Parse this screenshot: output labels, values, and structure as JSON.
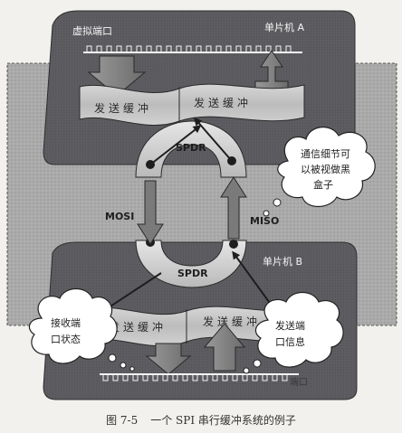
{
  "mcu_a": {
    "title": "单片机 A",
    "port_label": "虚拟端口",
    "tx_buffer_left": "发送缓冲",
    "tx_buffer_right": "发送缓冲"
  },
  "mcu_b": {
    "title": "单片机 B",
    "port_label": "端口",
    "tx_buffer_left": "发送缓冲",
    "tx_buffer_right": "发送缓冲"
  },
  "spdr_top": "SPDR",
  "spdr_bottom": "SPDR",
  "mosi": "MOSI",
  "miso": "MISO",
  "bubble_blackbox": [
    "通信细节可",
    "以被视做黑",
    "盒子"
  ],
  "bubble_receive": [
    "接收端",
    "口状态"
  ],
  "bubble_send": [
    "发送端",
    "口信息"
  ],
  "caption": {
    "number": "图 7-5",
    "text": "一个 SPI 串行缓冲系统的例子"
  },
  "colors": {
    "board": "#5f5f63",
    "board_dark": "#3f3f43",
    "background_band": "#aeaeae",
    "ribbon": "#c4c4c4",
    "arrow": "#777777"
  }
}
